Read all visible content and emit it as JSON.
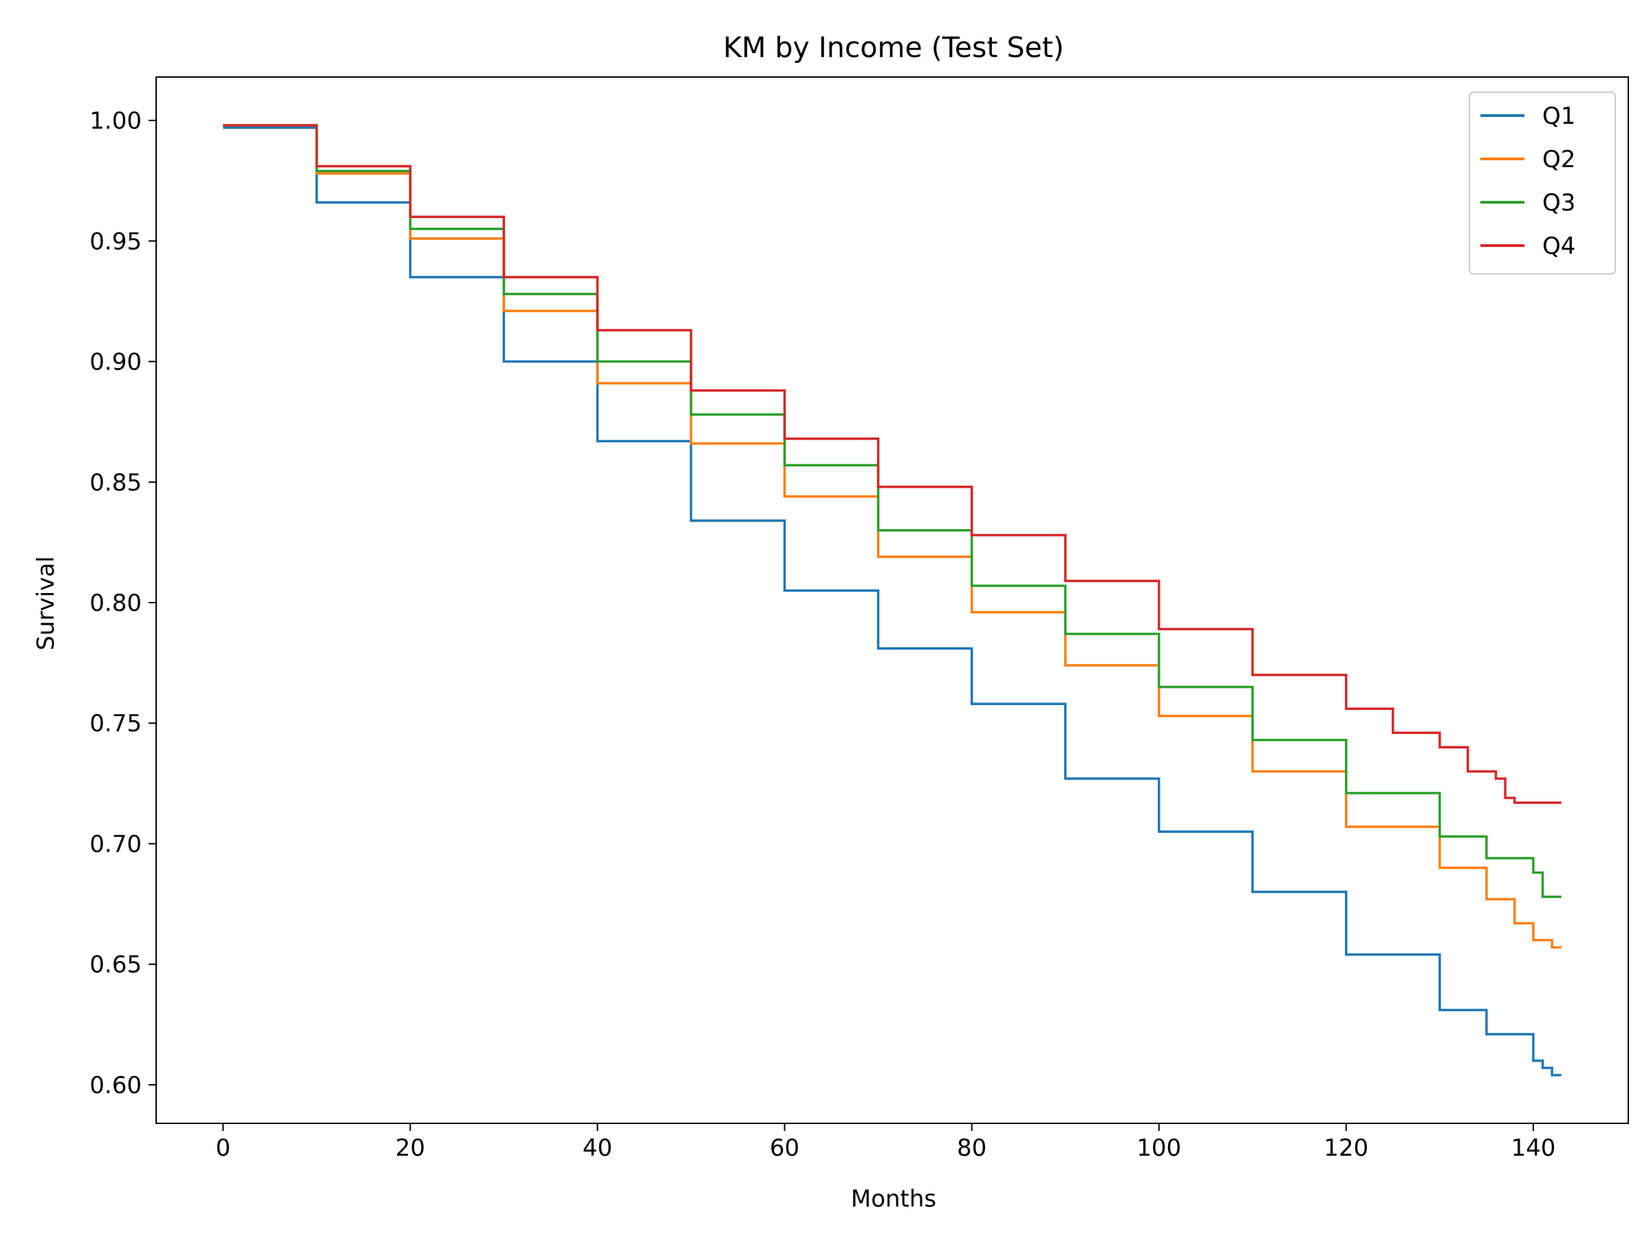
{
  "chart_data": {
    "type": "line",
    "step": true,
    "title": "KM by Income (Test Set)",
    "xlabel": "Months",
    "ylabel": "Survival",
    "xlim": [
      -7.15,
      150.15
    ],
    "ylim": [
      0.584,
      1.018
    ],
    "x_ticks": [
      0,
      20,
      40,
      60,
      80,
      100,
      120,
      140
    ],
    "x_tick_labels": [
      "0",
      "20",
      "40",
      "60",
      "80",
      "100",
      "120",
      "140"
    ],
    "y_ticks": [
      0.6,
      0.65,
      0.7,
      0.75,
      0.8,
      0.85,
      0.9,
      0.95,
      1.0
    ],
    "y_tick_labels": [
      "0.60",
      "0.65",
      "0.70",
      "0.75",
      "0.80",
      "0.85",
      "0.90",
      "0.95",
      "1.00"
    ],
    "grid": false,
    "legend_position": "top-right",
    "series": [
      {
        "name": "Q1",
        "color": "#1f77b4",
        "points": [
          [
            0,
            0.997
          ],
          [
            10,
            0.966
          ],
          [
            20,
            0.935
          ],
          [
            30,
            0.9
          ],
          [
            40,
            0.867
          ],
          [
            50,
            0.834
          ],
          [
            60,
            0.805
          ],
          [
            70,
            0.781
          ],
          [
            80,
            0.758
          ],
          [
            90,
            0.727
          ],
          [
            100,
            0.705
          ],
          [
            110,
            0.68
          ],
          [
            120,
            0.654
          ],
          [
            130,
            0.631
          ],
          [
            135,
            0.621
          ],
          [
            140,
            0.61
          ],
          [
            141,
            0.607
          ],
          [
            142,
            0.604
          ],
          [
            143,
            0.604
          ]
        ]
      },
      {
        "name": "Q2",
        "color": "#ff7f0e",
        "points": [
          [
            0,
            0.998
          ],
          [
            10,
            0.978
          ],
          [
            20,
            0.951
          ],
          [
            30,
            0.921
          ],
          [
            40,
            0.891
          ],
          [
            50,
            0.866
          ],
          [
            60,
            0.844
          ],
          [
            70,
            0.819
          ],
          [
            80,
            0.796
          ],
          [
            90,
            0.774
          ],
          [
            100,
            0.753
          ],
          [
            110,
            0.73
          ],
          [
            120,
            0.707
          ],
          [
            130,
            0.69
          ],
          [
            135,
            0.677
          ],
          [
            138,
            0.667
          ],
          [
            140,
            0.66
          ],
          [
            142,
            0.657
          ],
          [
            143,
            0.657
          ]
        ]
      },
      {
        "name": "Q3",
        "color": "#2ca02c",
        "points": [
          [
            0,
            0.998
          ],
          [
            10,
            0.979
          ],
          [
            20,
            0.955
          ],
          [
            30,
            0.928
          ],
          [
            40,
            0.9
          ],
          [
            50,
            0.878
          ],
          [
            60,
            0.857
          ],
          [
            70,
            0.83
          ],
          [
            80,
            0.807
          ],
          [
            90,
            0.787
          ],
          [
            100,
            0.765
          ],
          [
            110,
            0.743
          ],
          [
            120,
            0.721
          ],
          [
            130,
            0.703
          ],
          [
            135,
            0.694
          ],
          [
            140,
            0.688
          ],
          [
            141,
            0.678
          ],
          [
            143,
            0.678
          ]
        ]
      },
      {
        "name": "Q4",
        "color": "#d62728",
        "points": [
          [
            0,
            0.998
          ],
          [
            10,
            0.981
          ],
          [
            20,
            0.96
          ],
          [
            30,
            0.935
          ],
          [
            40,
            0.913
          ],
          [
            50,
            0.888
          ],
          [
            60,
            0.868
          ],
          [
            70,
            0.848
          ],
          [
            80,
            0.828
          ],
          [
            90,
            0.809
          ],
          [
            100,
            0.789
          ],
          [
            110,
            0.77
          ],
          [
            120,
            0.756
          ],
          [
            125,
            0.746
          ],
          [
            130,
            0.74
          ],
          [
            133,
            0.73
          ],
          [
            136,
            0.727
          ],
          [
            137,
            0.719
          ],
          [
            138,
            0.717
          ],
          [
            143,
            0.717
          ]
        ]
      }
    ]
  }
}
